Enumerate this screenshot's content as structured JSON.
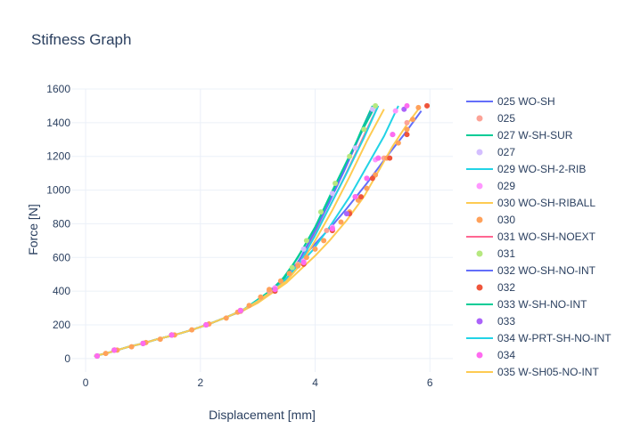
{
  "chart_data": {
    "type": "line",
    "title": "Stifness Graph",
    "xlabel": "Displacement [mm]",
    "ylabel": "Force [N]",
    "xlim": [
      -0.25,
      6.4
    ],
    "ylim": [
      -80,
      1600
    ],
    "x_ticks": [
      0,
      2,
      4,
      6
    ],
    "y_ticks": [
      0,
      200,
      400,
      600,
      800,
      1000,
      1200,
      1400,
      1600
    ],
    "grid": true,
    "legend_position": "right",
    "series": [
      {
        "name": "025 WO-SH",
        "mode": "lines",
        "color": "#636efa",
        "x": [
          0.15,
          0.35,
          0.55,
          0.75,
          1.0,
          1.25,
          1.55,
          1.85,
          2.15,
          2.45,
          2.75,
          3.0,
          3.2,
          3.4,
          3.55,
          3.75,
          4.0,
          4.3,
          4.55,
          4.9,
          5.25,
          5.55,
          5.85
        ],
        "y": [
          15,
          30,
          50,
          70,
          90,
          115,
          140,
          170,
          205,
          245,
          285,
          340,
          400,
          460,
          520,
          590,
          680,
          790,
          890,
          1040,
          1200,
          1330,
          1470
        ]
      },
      {
        "name": "025",
        "mode": "markers",
        "color": "#fca397",
        "x": [
          0.2,
          0.5,
          1.0,
          1.5,
          2.1,
          2.7,
          3.2,
          3.7,
          4.2,
          4.7,
          5.2,
          5.6,
          5.95
        ],
        "y": [
          15,
          50,
          90,
          140,
          200,
          280,
          400,
          560,
          760,
          960,
          1190,
          1400,
          1500
        ]
      },
      {
        "name": "027 W-SH-SUR",
        "mode": "lines",
        "color": "#00cc96",
        "x": [
          0.15,
          0.35,
          0.55,
          0.75,
          1.0,
          1.25,
          1.55,
          1.85,
          2.15,
          2.45,
          2.75,
          3.0,
          3.25,
          3.45,
          3.6,
          3.8,
          4.05,
          4.3,
          4.55,
          4.8,
          5.0
        ],
        "y": [
          15,
          30,
          50,
          70,
          90,
          115,
          140,
          170,
          205,
          245,
          290,
          350,
          410,
          470,
          550,
          660,
          810,
          980,
          1150,
          1350,
          1500
        ]
      },
      {
        "name": "027",
        "mode": "markers",
        "color": "#d4bfff",
        "x": [
          0.2,
          0.5,
          1.0,
          1.5,
          2.1,
          2.7,
          3.3,
          3.8,
          4.3,
          4.7,
          5.0
        ],
        "y": [
          15,
          50,
          90,
          140,
          200,
          285,
          420,
          650,
          980,
          1250,
          1480
        ]
      },
      {
        "name": "029 WO-SH-2-RIB",
        "mode": "lines",
        "color": "#22d3e6",
        "x": [
          0.15,
          0.35,
          0.55,
          0.75,
          1.0,
          1.25,
          1.55,
          1.85,
          2.15,
          2.45,
          2.75,
          3.0,
          3.25,
          3.45,
          3.65,
          3.95,
          4.25,
          4.6,
          4.9,
          5.2,
          5.45
        ],
        "y": [
          15,
          30,
          50,
          70,
          90,
          115,
          140,
          170,
          205,
          245,
          290,
          345,
          400,
          460,
          530,
          640,
          780,
          960,
          1140,
          1320,
          1500
        ]
      },
      {
        "name": "029",
        "mode": "markers",
        "color": "#ff97ff",
        "x": [
          0.2,
          0.5,
          1.0,
          1.5,
          2.1,
          2.7,
          3.3,
          3.8,
          4.3,
          4.7,
          5.05,
          5.4
        ],
        "y": [
          15,
          50,
          90,
          140,
          200,
          285,
          420,
          580,
          780,
          960,
          1180,
          1470
        ]
      },
      {
        "name": "030 WO-SH-RIBALL",
        "mode": "lines",
        "color": "#fecb52",
        "x": [
          0.15,
          0.35,
          0.55,
          0.75,
          1.0,
          1.25,
          1.55,
          1.85,
          2.15,
          2.45,
          2.75,
          3.0,
          3.25,
          3.5,
          3.75,
          4.0,
          4.25,
          4.55,
          4.85,
          5.1,
          5.35,
          5.6,
          5.8
        ],
        "y": [
          15,
          30,
          50,
          70,
          90,
          115,
          140,
          170,
          205,
          245,
          285,
          330,
          390,
          450,
          530,
          610,
          700,
          820,
          960,
          1110,
          1260,
          1390,
          1480
        ]
      },
      {
        "name": "030",
        "mode": "markers",
        "color": "#ffa15a",
        "x": [
          0.2,
          0.35,
          0.55,
          0.8,
          1.05,
          1.3,
          1.55,
          1.85,
          2.15,
          2.45,
          2.65,
          2.85,
          3.05,
          3.2,
          3.4,
          3.55,
          3.7,
          3.85,
          4.0,
          4.15,
          4.3,
          4.45,
          4.6,
          4.75,
          4.9,
          5.05,
          5.25,
          5.45,
          5.6,
          5.7,
          5.8
        ],
        "y": [
          15,
          30,
          50,
          70,
          95,
          115,
          140,
          170,
          205,
          240,
          275,
          315,
          365,
          410,
          460,
          505,
          550,
          600,
          650,
          700,
          760,
          810,
          870,
          940,
          1010,
          1090,
          1190,
          1280,
          1360,
          1420,
          1490
        ]
      },
      {
        "name": "031 WO-SH-NOEXT",
        "mode": "lines",
        "color": "#ff6692",
        "x": [
          0.15,
          0.35,
          0.55,
          0.75,
          1.0,
          1.25,
          1.55,
          1.85,
          2.15,
          2.45,
          2.75,
          3.0,
          3.25,
          3.5,
          3.75,
          4.0,
          4.25,
          4.5,
          4.75,
          5.0,
          5.1
        ],
        "y": [
          15,
          30,
          50,
          70,
          90,
          115,
          140,
          170,
          205,
          245,
          290,
          340,
          400,
          470,
          590,
          740,
          900,
          1070,
          1250,
          1430,
          1500
        ]
      },
      {
        "name": "031",
        "mode": "markers",
        "color": "#b6e880",
        "x": [
          0.2,
          0.5,
          1.0,
          1.5,
          2.1,
          2.7,
          3.3,
          3.6,
          3.85,
          4.1,
          4.35,
          4.6,
          4.85,
          5.05
        ],
        "y": [
          15,
          50,
          90,
          140,
          200,
          285,
          410,
          540,
          700,
          870,
          1040,
          1200,
          1360,
          1500
        ]
      },
      {
        "name": "032 WO-SH-NO-INT",
        "mode": "lines",
        "color": "#636efa",
        "x": [
          0.15,
          0.35,
          0.55,
          0.75,
          1.0,
          1.25,
          1.55,
          1.85,
          2.15,
          2.45,
          2.75,
          3.0,
          3.25,
          3.5,
          3.75,
          4.0,
          4.25,
          4.5,
          4.75,
          5.0
        ],
        "y": [
          15,
          30,
          50,
          70,
          90,
          115,
          140,
          170,
          205,
          245,
          290,
          340,
          400,
          470,
          600,
          760,
          930,
          1110,
          1300,
          1480
        ]
      },
      {
        "name": "032",
        "mode": "markers",
        "color": "#ef553b",
        "x": [
          0.2,
          0.5,
          1.0,
          1.5,
          2.1,
          2.7,
          3.3,
          3.8,
          4.3,
          4.6,
          4.8,
          5.0,
          5.3,
          5.6,
          5.95
        ],
        "y": [
          15,
          50,
          90,
          140,
          200,
          285,
          400,
          560,
          760,
          860,
          960,
          1070,
          1190,
          1330,
          1500
        ]
      },
      {
        "name": "033 W-SH-NO-INT",
        "mode": "lines",
        "color": "#00cc96",
        "x": [
          0.15,
          0.35,
          0.55,
          0.75,
          1.0,
          1.25,
          1.55,
          1.85,
          2.15,
          2.45,
          2.75,
          3.0,
          3.25,
          3.45,
          3.7,
          4.0,
          4.25,
          4.55,
          4.8,
          5.05
        ],
        "y": [
          15,
          30,
          50,
          70,
          90,
          115,
          140,
          170,
          205,
          245,
          290,
          345,
          410,
          480,
          600,
          780,
          960,
          1170,
          1340,
          1500
        ]
      },
      {
        "name": "033",
        "mode": "markers",
        "color": "#ab63fa",
        "x": [
          0.2,
          0.5,
          1.0,
          1.5,
          2.1,
          2.7,
          3.3,
          3.8,
          4.3,
          4.55,
          4.7,
          4.9,
          5.1,
          5.35,
          5.55
        ],
        "y": [
          15,
          50,
          90,
          140,
          200,
          285,
          410,
          570,
          770,
          860,
          960,
          1070,
          1190,
          1330,
          1480
        ]
      },
      {
        "name": "034 W-PRT-SH-NO-INT",
        "mode": "lines",
        "color": "#22d3e6",
        "x": [
          0.15,
          0.35,
          0.55,
          0.75,
          1.0,
          1.25,
          1.55,
          1.85,
          2.15,
          2.45,
          2.75,
          3.0,
          3.25,
          3.5,
          3.75,
          4.0,
          4.25,
          4.55,
          4.85,
          5.1
        ],
        "y": [
          15,
          30,
          50,
          70,
          90,
          115,
          140,
          170,
          205,
          245,
          290,
          345,
          400,
          470,
          580,
          730,
          900,
          1100,
          1310,
          1500
        ]
      },
      {
        "name": "034",
        "mode": "markers",
        "color": "#ff6bf0",
        "x": [
          0.2,
          0.5,
          1.0,
          1.5,
          2.1,
          2.7,
          3.3,
          3.8,
          4.3,
          4.7,
          4.9,
          5.1,
          5.35,
          5.6
        ],
        "y": [
          15,
          50,
          90,
          140,
          200,
          285,
          410,
          570,
          770,
          960,
          1070,
          1190,
          1330,
          1500
        ]
      },
      {
        "name": "035 W-SH05-NO-INT",
        "mode": "lines",
        "color": "#fecb52",
        "x": [
          0.15,
          0.35,
          0.55,
          0.75,
          1.0,
          1.25,
          1.55,
          1.85,
          2.15,
          2.45,
          2.75,
          3.0,
          3.25,
          3.5,
          3.75,
          4.0,
          4.3,
          4.6,
          4.9,
          5.2
        ],
        "y": [
          15,
          30,
          50,
          70,
          90,
          115,
          140,
          170,
          205,
          245,
          290,
          340,
          400,
          460,
          560,
          700,
          880,
          1080,
          1290,
          1480
        ]
      }
    ]
  }
}
